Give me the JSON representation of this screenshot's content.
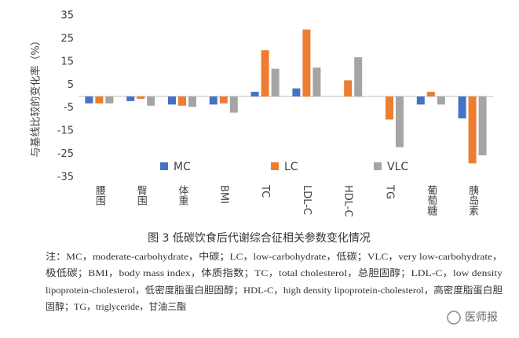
{
  "chart_data": {
    "type": "bar",
    "y_label": "与基线比较的变化率（%）",
    "categories": [
      "腰围",
      "臀围",
      "体重",
      "BMI",
      "TC",
      "LDL-C",
      "HDL-C",
      "TG",
      "葡萄糖",
      "胰岛素"
    ],
    "series": [
      {
        "name": "MC",
        "color": "#4472c4",
        "values": [
          -3,
          -2,
          -3.5,
          -3.5,
          2,
          3.5,
          0,
          0,
          -3.5,
          -9.5
        ]
      },
      {
        "name": "LC",
        "color": "#ed7d31",
        "values": [
          -3,
          -1,
          -4,
          -3,
          20,
          29,
          7,
          -10,
          2,
          -29
        ]
      },
      {
        "name": "VLC",
        "color": "#a5a5a5",
        "values": [
          -3,
          -4,
          -4.5,
          -7,
          12,
          12.5,
          17,
          -22,
          -3.5,
          -25.5
        ]
      }
    ],
    "ylim": [
      -35,
      35
    ],
    "yticks": [
      -35,
      -25,
      -15,
      -5,
      5,
      15,
      25,
      35
    ],
    "grid": false
  },
  "caption": "图 3 低碳饮食后代谢综合征相关参数变化情况",
  "note_lines": [
    "注：MC，moderate-carbohydrate，中碳；LC，low-carbohydrate，低碳；VLC，very low-carbohydrate，",
    "极低碳；BMI，body mass index，体质指数；TC，total cholesterol，总胆固醇；LDL-C，low density",
    "lipoprotein-cholesterol，低密度脂蛋白胆固醇；HDL-C，high density lipoprotein-cholesterol，高密度脂蛋白胆",
    "固醇；TG，triglyceride，甘油三酯"
  ],
  "watermark": "医师报"
}
